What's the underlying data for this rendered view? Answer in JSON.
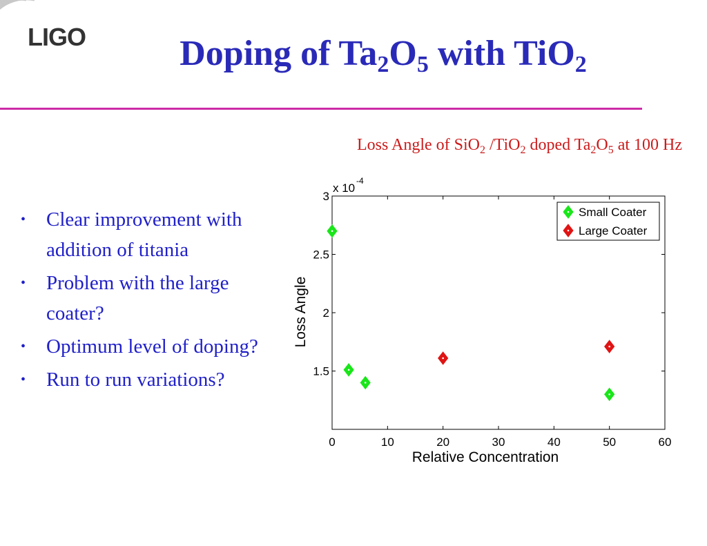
{
  "logo": {
    "text": "LIGO"
  },
  "title": {
    "parts": [
      "Doping of ",
      "Ta",
      "2",
      "O",
      "5",
      " with TiO",
      "2"
    ]
  },
  "chart_title": {
    "parts": [
      "Loss Angle of SiO",
      "2",
      " /TiO",
      "2",
      " doped Ta",
      "2",
      "O",
      "5",
      " at 100 Hz"
    ]
  },
  "bullets": [
    "Clear improvement with addition of titania",
    "Problem with the large coater?",
    "Optimum level of doping?",
    "Run to run variations?"
  ],
  "chart_data": {
    "type": "scatter",
    "xlabel": "Relative Concentration",
    "ylabel": "Loss Angle",
    "y_multiplier": "x 10",
    "y_multiplier_exp": "-4",
    "xlim": [
      0,
      60
    ],
    "ylim": [
      1.0,
      3.0
    ],
    "xticks": [
      0,
      10,
      20,
      30,
      40,
      50,
      60
    ],
    "yticks": [
      1.5,
      2,
      2.5,
      3
    ],
    "ytick_labels": [
      "1.5",
      "2",
      "2.5",
      "3"
    ],
    "grid": false,
    "legend_position": "top-right",
    "series": [
      {
        "name": "Small Coater",
        "color": "#19e619",
        "marker": "diamond",
        "x": [
          0,
          3,
          6,
          50
        ],
        "y": [
          2.7,
          1.51,
          1.4,
          1.3
        ]
      },
      {
        "name": "Large Coater",
        "color": "#e01414",
        "marker": "diamond",
        "x": [
          20,
          50
        ],
        "y": [
          1.61,
          1.71
        ]
      }
    ]
  }
}
